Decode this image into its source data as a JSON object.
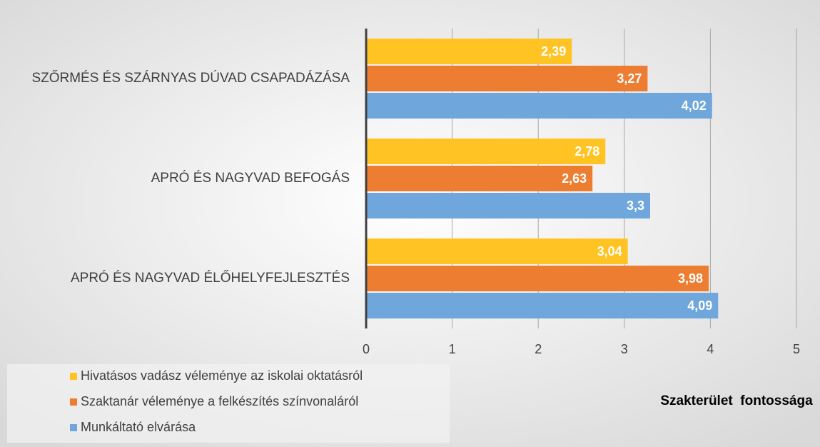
{
  "chart_data": {
    "type": "hbar",
    "categories": [
      "SZŐRMÉS ÉS SZÁRNYAS DÚVAD CSAPADÁZÁSA",
      "APRÓ ÉS NAGYVAD BEFOGÁS",
      "APRÓ ÉS NAGYVAD ÉLŐHELYFEJLESZTÉS"
    ],
    "series": [
      {
        "name": "Hivatásos vadász véleménye az iskolai oktatásról",
        "color": "#ffc423",
        "values": [
          2.39,
          2.78,
          3.04
        ],
        "value_labels": [
          "2,39",
          "2,78",
          "3,04"
        ]
      },
      {
        "name": "Szaktanár véleménye a felkészítés színvonaláról",
        "color": "#ed7d31",
        "values": [
          3.27,
          2.63,
          3.98
        ],
        "value_labels": [
          "3,27",
          "2,63",
          "3,98"
        ]
      },
      {
        "name": "Munkáltató elvárása",
        "color": "#6fa6dc",
        "values": [
          4.02,
          3.3,
          4.09
        ],
        "value_labels": [
          "4,02",
          "3,3",
          "4,09"
        ]
      }
    ],
    "xlabel": "Szakterület  fontossága",
    "xlim": [
      0,
      5
    ],
    "xticks": [
      0,
      1,
      2,
      3,
      4,
      5
    ],
    "grid": true,
    "legend": "lower left"
  }
}
